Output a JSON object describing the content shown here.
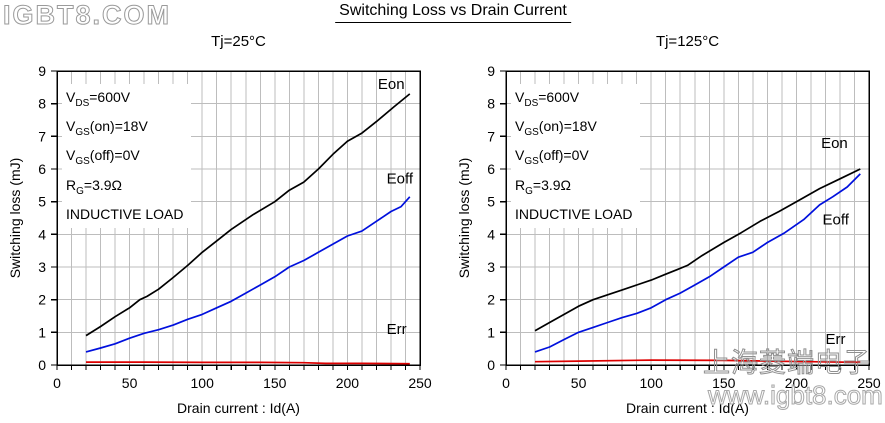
{
  "title": "Switching Loss vs Drain Current",
  "watermarks": {
    "top_left": "IGBT8.COM",
    "company": "上海菱端电子",
    "site": "www.igbt8.com"
  },
  "colors": {
    "eon": "#000000",
    "eoff": "#0010dd",
    "err": "#dd0000",
    "grid": "#bdbdbd",
    "axis": "#000000",
    "watermark": "#9a9a9a"
  },
  "chart_data": [
    {
      "type": "line",
      "title": "Tj=25°C",
      "xlabel": "Drain current : Id(A)",
      "ylabel": "Switching loss (mJ)",
      "xlim": [
        0,
        250
      ],
      "ylim": [
        0,
        9
      ],
      "x_major_ticks": [
        0,
        50,
        100,
        150,
        200,
        250
      ],
      "x_minor_step": 10,
      "y_ticks": [
        0,
        1,
        2,
        3,
        4,
        5,
        6,
        7,
        8,
        9
      ],
      "grid": true,
      "legend_position": "inline-labels",
      "conditions": [
        "V~DS~=600V",
        "V~GS~(on)=18V",
        "V~GS~(off)=0V",
        "R~G~=3.9Ω",
        "INDUCTIVE LOAD"
      ],
      "series": [
        {
          "name": "Eon",
          "color": "#000000",
          "label_pos": [
            221,
            8.45
          ],
          "points": [
            [
              20,
              0.9
            ],
            [
              30,
              1.18
            ],
            [
              40,
              1.48
            ],
            [
              50,
              1.75
            ],
            [
              57,
              2.0
            ],
            [
              62,
              2.1
            ],
            [
              70,
              2.32
            ],
            [
              80,
              2.68
            ],
            [
              90,
              3.05
            ],
            [
              100,
              3.45
            ],
            [
              110,
              3.8
            ],
            [
              120,
              4.15
            ],
            [
              135,
              4.6
            ],
            [
              150,
              5.0
            ],
            [
              160,
              5.35
            ],
            [
              170,
              5.6
            ],
            [
              180,
              6.0
            ],
            [
              190,
              6.45
            ],
            [
              200,
              6.85
            ],
            [
              210,
              7.1
            ],
            [
              220,
              7.45
            ],
            [
              232,
              7.9
            ],
            [
              243,
              8.3
            ]
          ]
        },
        {
          "name": "Eoff",
          "color": "#0010dd",
          "label_pos": [
            227,
            5.55
          ],
          "points": [
            [
              20,
              0.4
            ],
            [
              30,
              0.52
            ],
            [
              40,
              0.65
            ],
            [
              50,
              0.82
            ],
            [
              60,
              0.97
            ],
            [
              70,
              1.08
            ],
            [
              80,
              1.22
            ],
            [
              90,
              1.4
            ],
            [
              100,
              1.55
            ],
            [
              110,
              1.75
            ],
            [
              120,
              1.95
            ],
            [
              130,
              2.2
            ],
            [
              140,
              2.45
            ],
            [
              150,
              2.7
            ],
            [
              160,
              3.0
            ],
            [
              170,
              3.2
            ],
            [
              180,
              3.45
            ],
            [
              190,
              3.7
            ],
            [
              200,
              3.95
            ],
            [
              210,
              4.1
            ],
            [
              220,
              4.4
            ],
            [
              230,
              4.7
            ],
            [
              237,
              4.85
            ],
            [
              243,
              5.15
            ]
          ]
        },
        {
          "name": "Err",
          "color": "#dd0000",
          "label_pos": [
            227,
            0.95
          ],
          "points": [
            [
              20,
              0.09
            ],
            [
              60,
              0.09
            ],
            [
              100,
              0.08
            ],
            [
              140,
              0.08
            ],
            [
              170,
              0.07
            ],
            [
              185,
              0.05
            ],
            [
              210,
              0.05
            ],
            [
              243,
              0.04
            ]
          ]
        }
      ]
    },
    {
      "type": "line",
      "title": "Tj=125°C",
      "xlabel": "Drain current : Id(A)",
      "ylabel": "Switching loss (mJ)",
      "xlim": [
        0,
        250
      ],
      "ylim": [
        0,
        9
      ],
      "x_major_ticks": [
        0,
        50,
        100,
        150,
        200,
        250
      ],
      "x_minor_step": 10,
      "y_ticks": [
        0,
        1,
        2,
        3,
        4,
        5,
        6,
        7,
        8,
        9
      ],
      "grid": true,
      "legend_position": "inline-labels",
      "conditions": [
        "V~DS~=600V",
        "V~GS~(on)=18V",
        "V~GS~(off)=0V",
        "R~G~=3.9Ω",
        "INDUCTIVE LOAD"
      ],
      "series": [
        {
          "name": "Eon",
          "color": "#000000",
          "label_pos": [
            217,
            6.65
          ],
          "points": [
            [
              20,
              1.05
            ],
            [
              30,
              1.3
            ],
            [
              40,
              1.55
            ],
            [
              50,
              1.8
            ],
            [
              60,
              2.0
            ],
            [
              70,
              2.15
            ],
            [
              80,
              2.3
            ],
            [
              90,
              2.45
            ],
            [
              100,
              2.6
            ],
            [
              110,
              2.78
            ],
            [
              118,
              2.92
            ],
            [
              125,
              3.05
            ],
            [
              135,
              3.35
            ],
            [
              150,
              3.75
            ],
            [
              162,
              4.05
            ],
            [
              175,
              4.4
            ],
            [
              188,
              4.7
            ],
            [
              200,
              5.0
            ],
            [
              216,
              5.4
            ],
            [
              230,
              5.7
            ],
            [
              244,
              6.0
            ]
          ]
        },
        {
          "name": "Eoff",
          "color": "#0010dd",
          "label_pos": [
            218,
            4.3
          ],
          "points": [
            [
              20,
              0.4
            ],
            [
              30,
              0.55
            ],
            [
              40,
              0.78
            ],
            [
              50,
              1.0
            ],
            [
              60,
              1.15
            ],
            [
              70,
              1.3
            ],
            [
              80,
              1.45
            ],
            [
              90,
              1.58
            ],
            [
              100,
              1.75
            ],
            [
              110,
              2.0
            ],
            [
              120,
              2.2
            ],
            [
              130,
              2.45
            ],
            [
              140,
              2.7
            ],
            [
              150,
              3.0
            ],
            [
              160,
              3.3
            ],
            [
              170,
              3.45
            ],
            [
              180,
              3.75
            ],
            [
              192,
              4.05
            ],
            [
              205,
              4.45
            ],
            [
              216,
              4.9
            ],
            [
              225,
              5.15
            ],
            [
              235,
              5.45
            ],
            [
              244,
              5.85
            ]
          ]
        },
        {
          "name": "Err",
          "color": "#dd0000",
          "label_pos": [
            220,
            0.65
          ],
          "points": [
            [
              20,
              0.1
            ],
            [
              50,
              0.12
            ],
            [
              100,
              0.15
            ],
            [
              150,
              0.14
            ],
            [
              180,
              0.12
            ],
            [
              210,
              0.1
            ],
            [
              244,
              0.08
            ]
          ]
        }
      ]
    }
  ]
}
